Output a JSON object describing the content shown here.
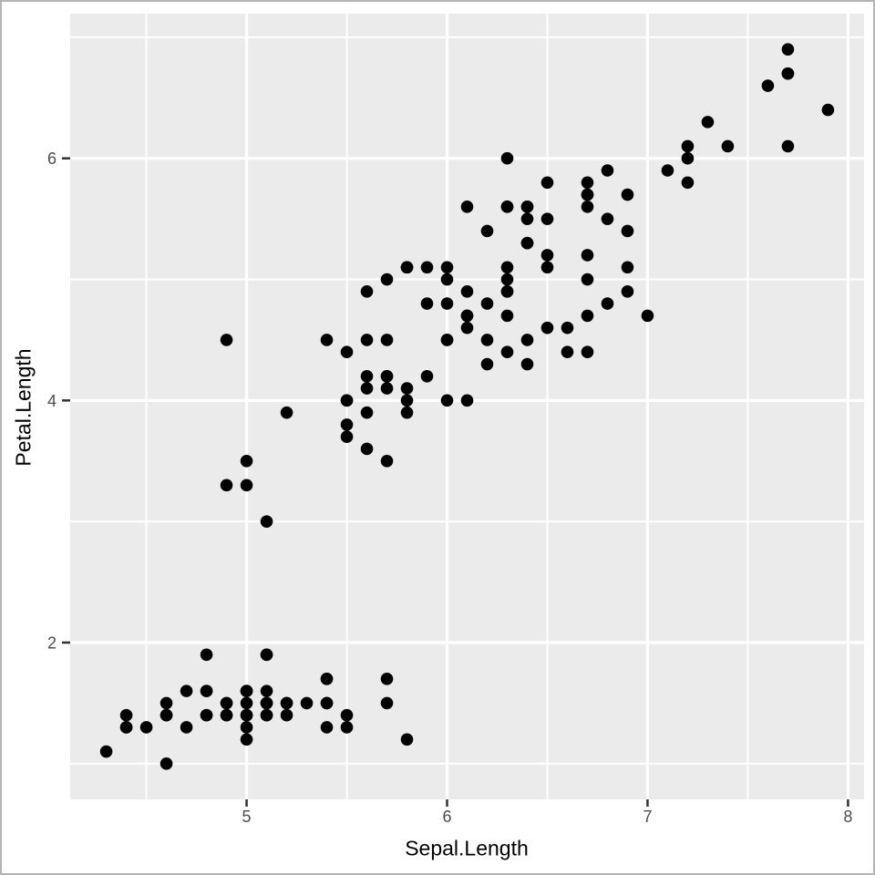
{
  "chart_data": {
    "type": "scatter",
    "title": "",
    "xlabel": "Sepal.Length",
    "ylabel": "Petal.Length",
    "xlim": [
      4.12,
      8.08
    ],
    "ylim": [
      0.705,
      7.195
    ],
    "x_major_ticks": [
      5,
      6,
      7,
      8
    ],
    "y_major_ticks": [
      2,
      4,
      6
    ],
    "x_minor_ticks": [
      4.5,
      5.5,
      6.5,
      7.5
    ],
    "y_minor_ticks": [
      1,
      3,
      5,
      7
    ],
    "grid": "on",
    "legend_position": "none",
    "colors": {
      "panel_bg": "#EBEBEB",
      "grid": "#FFFFFF",
      "point": "#000000",
      "tick_mark": "#333333",
      "tick_label": "#4D4D4D",
      "axis_title": "#000000",
      "frame": "#B4B4B4"
    },
    "point_radius_px": 6.8,
    "points": [
      [
        5.1,
        1.4
      ],
      [
        4.9,
        1.4
      ],
      [
        4.7,
        1.3
      ],
      [
        4.6,
        1.5
      ],
      [
        5.0,
        1.4
      ],
      [
        5.4,
        1.7
      ],
      [
        4.6,
        1.4
      ],
      [
        5.0,
        1.5
      ],
      [
        4.4,
        1.4
      ],
      [
        4.9,
        1.5
      ],
      [
        5.4,
        1.5
      ],
      [
        4.8,
        1.6
      ],
      [
        4.8,
        1.4
      ],
      [
        4.3,
        1.1
      ],
      [
        5.8,
        1.2
      ],
      [
        5.7,
        1.5
      ],
      [
        5.4,
        1.3
      ],
      [
        5.1,
        1.4
      ],
      [
        5.7,
        1.7
      ],
      [
        5.1,
        1.5
      ],
      [
        5.4,
        1.7
      ],
      [
        5.1,
        1.5
      ],
      [
        4.6,
        1.0
      ],
      [
        5.1,
        1.9
      ],
      [
        4.8,
        1.9
      ],
      [
        5.0,
        1.6
      ],
      [
        5.0,
        1.6
      ],
      [
        5.2,
        1.5
      ],
      [
        5.2,
        1.4
      ],
      [
        4.7,
        1.6
      ],
      [
        4.8,
        1.6
      ],
      [
        5.4,
        1.5
      ],
      [
        5.2,
        1.5
      ],
      [
        5.5,
        1.4
      ],
      [
        4.9,
        1.5
      ],
      [
        5.0,
        1.2
      ],
      [
        5.5,
        1.3
      ],
      [
        4.9,
        1.4
      ],
      [
        4.4,
        1.3
      ],
      [
        5.1,
        1.5
      ],
      [
        5.0,
        1.3
      ],
      [
        4.5,
        1.3
      ],
      [
        4.4,
        1.3
      ],
      [
        5.0,
        1.6
      ],
      [
        5.1,
        1.9
      ],
      [
        4.8,
        1.4
      ],
      [
        5.1,
        1.6
      ],
      [
        4.6,
        1.4
      ],
      [
        5.3,
        1.5
      ],
      [
        5.0,
        1.4
      ],
      [
        7.0,
        4.7
      ],
      [
        6.4,
        4.5
      ],
      [
        6.9,
        4.9
      ],
      [
        5.5,
        4.0
      ],
      [
        6.5,
        4.6
      ],
      [
        5.7,
        4.5
      ],
      [
        6.3,
        4.7
      ],
      [
        4.9,
        3.3
      ],
      [
        6.6,
        4.6
      ],
      [
        5.2,
        3.9
      ],
      [
        5.0,
        3.5
      ],
      [
        5.9,
        4.2
      ],
      [
        6.0,
        4.0
      ],
      [
        6.1,
        4.7
      ],
      [
        5.6,
        3.6
      ],
      [
        6.7,
        4.4
      ],
      [
        5.6,
        4.5
      ],
      [
        5.8,
        4.1
      ],
      [
        6.2,
        4.5
      ],
      [
        5.6,
        3.9
      ],
      [
        5.9,
        4.8
      ],
      [
        6.1,
        4.0
      ],
      [
        6.3,
        4.9
      ],
      [
        6.1,
        4.7
      ],
      [
        6.4,
        4.3
      ],
      [
        6.6,
        4.4
      ],
      [
        6.8,
        4.8
      ],
      [
        6.7,
        5.0
      ],
      [
        6.0,
        4.5
      ],
      [
        5.7,
        3.5
      ],
      [
        5.5,
        3.8
      ],
      [
        5.5,
        3.7
      ],
      [
        5.8,
        3.9
      ],
      [
        6.0,
        5.1
      ],
      [
        5.4,
        4.5
      ],
      [
        6.0,
        4.5
      ],
      [
        6.7,
        4.7
      ],
      [
        6.3,
        4.4
      ],
      [
        5.6,
        4.1
      ],
      [
        5.5,
        4.0
      ],
      [
        5.5,
        4.4
      ],
      [
        6.1,
        4.6
      ],
      [
        5.8,
        4.0
      ],
      [
        5.0,
        3.3
      ],
      [
        5.6,
        4.2
      ],
      [
        5.7,
        4.2
      ],
      [
        5.7,
        4.2
      ],
      [
        6.2,
        4.3
      ],
      [
        5.1,
        3.0
      ],
      [
        5.7,
        4.1
      ],
      [
        6.3,
        6.0
      ],
      [
        5.8,
        5.1
      ],
      [
        7.1,
        5.9
      ],
      [
        6.3,
        5.6
      ],
      [
        6.5,
        5.8
      ],
      [
        7.6,
        6.6
      ],
      [
        4.9,
        4.5
      ],
      [
        7.3,
        6.3
      ],
      [
        6.7,
        5.8
      ],
      [
        7.2,
        6.1
      ],
      [
        6.5,
        5.1
      ],
      [
        6.4,
        5.3
      ],
      [
        6.8,
        5.5
      ],
      [
        5.7,
        5.0
      ],
      [
        5.8,
        5.1
      ],
      [
        6.4,
        5.3
      ],
      [
        6.5,
        5.5
      ],
      [
        7.7,
        6.7
      ],
      [
        7.7,
        6.9
      ],
      [
        6.0,
        5.0
      ],
      [
        6.9,
        5.7
      ],
      [
        5.6,
        4.9
      ],
      [
        7.7,
        6.7
      ],
      [
        6.3,
        4.9
      ],
      [
        6.7,
        5.7
      ],
      [
        7.2,
        6.0
      ],
      [
        6.2,
        4.8
      ],
      [
        6.1,
        4.9
      ],
      [
        6.4,
        5.6
      ],
      [
        7.2,
        5.8
      ],
      [
        7.4,
        6.1
      ],
      [
        7.9,
        6.4
      ],
      [
        6.4,
        5.6
      ],
      [
        6.3,
        5.1
      ],
      [
        6.1,
        5.6
      ],
      [
        7.7,
        6.1
      ],
      [
        6.3,
        5.6
      ],
      [
        6.4,
        5.5
      ],
      [
        6.0,
        4.8
      ],
      [
        6.9,
        5.4
      ],
      [
        6.7,
        5.6
      ],
      [
        6.9,
        5.1
      ],
      [
        5.8,
        5.1
      ],
      [
        6.8,
        5.9
      ],
      [
        6.7,
        5.7
      ],
      [
        6.7,
        5.2
      ],
      [
        6.3,
        5.0
      ],
      [
        6.5,
        5.2
      ],
      [
        6.2,
        5.4
      ],
      [
        5.9,
        5.1
      ]
    ]
  }
}
